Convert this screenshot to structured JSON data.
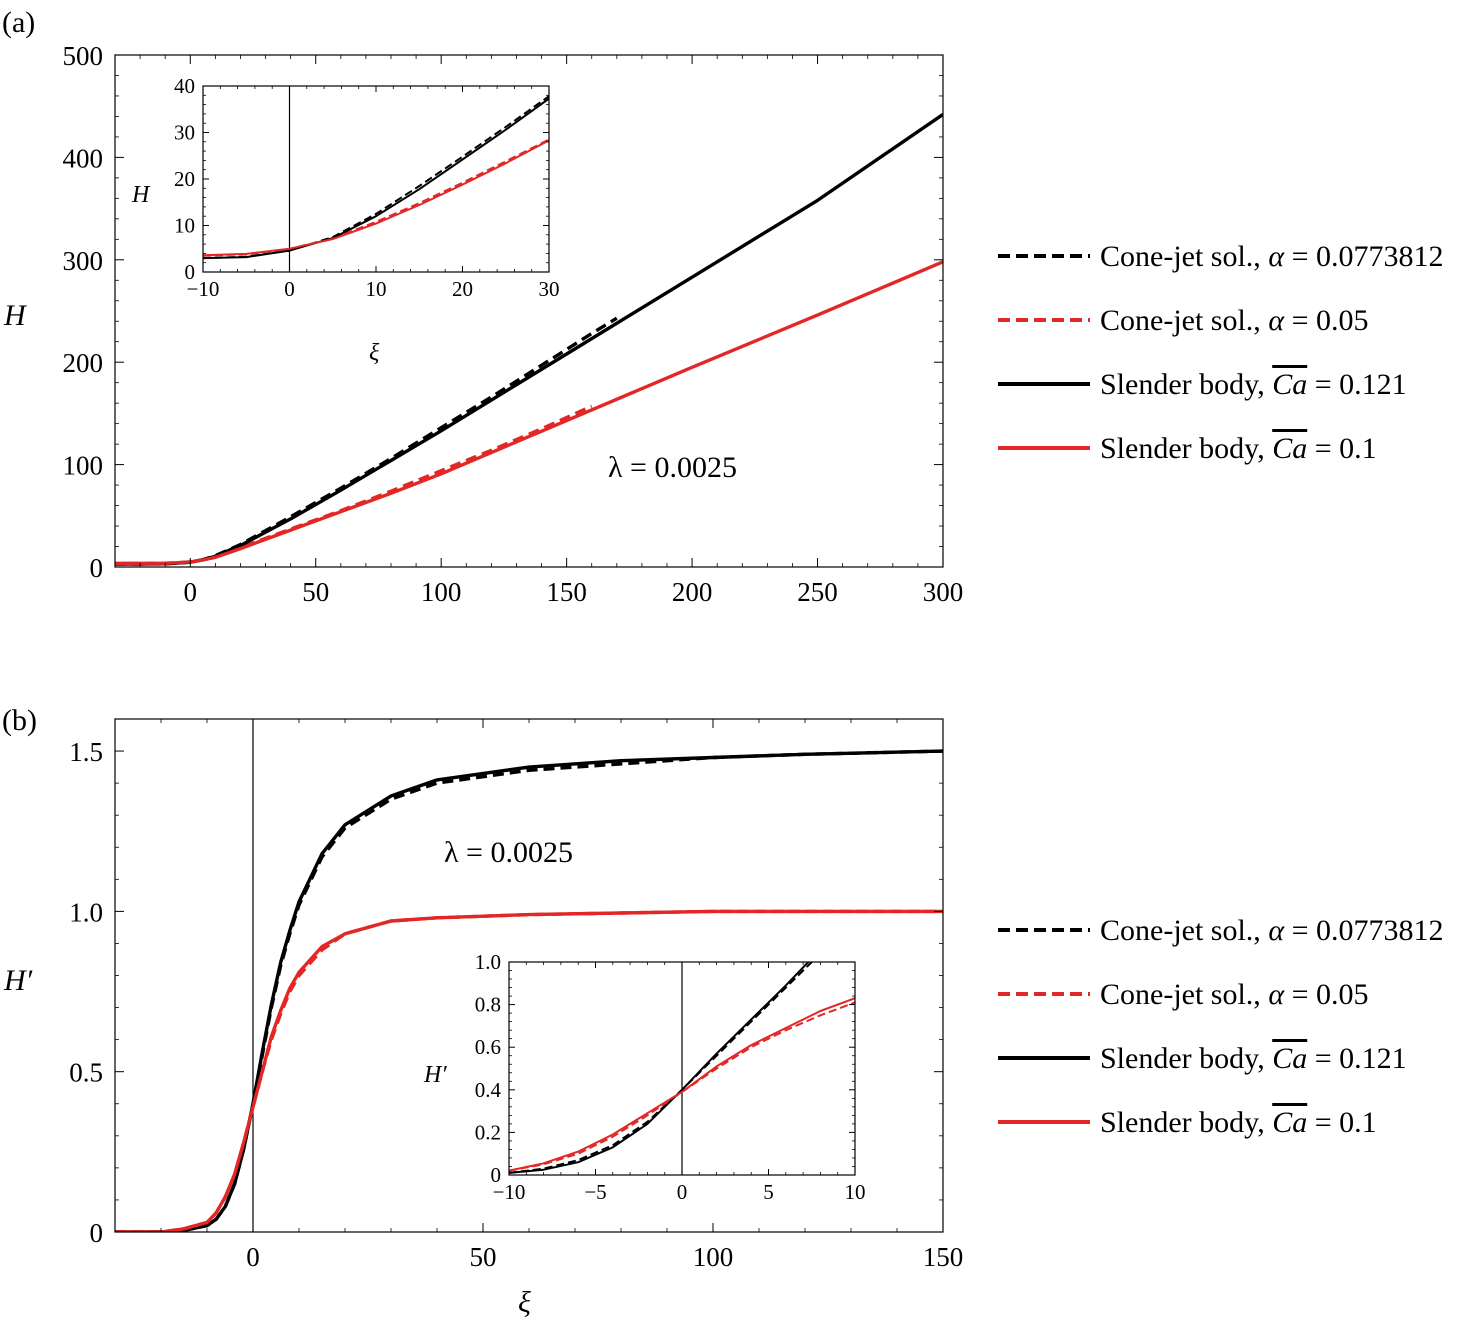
{
  "colors": {
    "black": "#000000",
    "red": "#e32726"
  },
  "chart_data": [
    {
      "id": "a",
      "type": "line",
      "panel_label": "(a)",
      "xlabel": "",
      "ylabel": "H",
      "xlim": [
        -30,
        300
      ],
      "ylim": [
        0,
        500
      ],
      "xticks": [
        0,
        50,
        100,
        150,
        200,
        250,
        300
      ],
      "yticks": [
        0,
        100,
        200,
        300,
        400,
        500
      ],
      "annotation": "λ = 0.0025",
      "legend_position": "right",
      "legend": [
        {
          "prefix": "Cone-jet sol., ",
          "symbol": "α",
          "suffix": " = 0.0773812",
          "color": "#000000",
          "style": "dashed"
        },
        {
          "prefix": "Cone-jet sol., ",
          "symbol": "α",
          "suffix": " = 0.05",
          "color": "#e32726",
          "style": "dashed"
        },
        {
          "prefix": "Slender body, ",
          "symbol": "Ca",
          "suffix": " = 0.121",
          "color": "#000000",
          "style": "solid"
        },
        {
          "prefix": "Slender body, ",
          "symbol": "Ca",
          "suffix": " = 0.1",
          "color": "#e32726",
          "style": "solid"
        }
      ],
      "series": [
        {
          "name": "Cone-jet sol., α = 0.0773812",
          "color": "#000000",
          "style": "dashed",
          "x": [
            -30,
            -20,
            -10,
            -5,
            0,
            5,
            10,
            20,
            40,
            60,
            80,
            100,
            120,
            140,
            160,
            170
          ],
          "y": [
            3,
            3,
            3.2,
            3.8,
            4.7,
            7,
            11,
            22,
            49,
            77,
            106,
            136,
            166,
            197,
            228,
            243
          ]
        },
        {
          "name": "Cone-jet sol., α = 0.05",
          "color": "#e32726",
          "style": "dashed",
          "x": [
            -25,
            -20,
            -10,
            -5,
            0,
            5,
            10,
            20,
            40,
            60,
            80,
            100,
            120,
            140,
            160
          ],
          "y": [
            3.5,
            3.5,
            3.6,
            4.1,
            5,
            7,
            10,
            19,
            37,
            55,
            74,
            94,
            114,
            135,
            157
          ]
        },
        {
          "name": "Slender body, Ca = 0.121",
          "color": "#000000",
          "style": "solid",
          "x": [
            -30,
            -20,
            -10,
            -5,
            0,
            5,
            10,
            20,
            40,
            60,
            80,
            100,
            150,
            200,
            250,
            300
          ],
          "y": [
            3,
            3,
            3.2,
            3.8,
            4.7,
            7,
            10.5,
            21,
            47,
            75,
            104,
            133,
            208,
            283,
            358,
            442
          ]
        },
        {
          "name": "Slender body, Ca = 0.1",
          "color": "#e32726",
          "style": "solid",
          "x": [
            -30,
            -20,
            -10,
            -5,
            0,
            5,
            10,
            20,
            40,
            60,
            80,
            100,
            150,
            200,
            250,
            300
          ],
          "y": [
            3.6,
            3.6,
            3.7,
            4.2,
            5,
            6.8,
            9.5,
            18,
            36,
            54,
            72,
            91,
            143,
            195,
            246,
            298
          ]
        }
      ],
      "inset": {
        "xlabel": "ξ",
        "ylabel": "H",
        "xlim": [
          -10,
          30
        ],
        "ylim": [
          0,
          40
        ],
        "xticks": [
          -10,
          0,
          10,
          20,
          30
        ],
        "yticks": [
          0,
          10,
          20,
          30,
          40
        ],
        "vline_x": 0,
        "series": [
          {
            "color": "#000000",
            "style": "dashed",
            "x": [
              -10,
              -5,
              0,
              5,
              10,
              15,
              20,
              25,
              30
            ],
            "y": [
              3,
              3.3,
              4.6,
              7.5,
              12.5,
              18.5,
              24.8,
              31.2,
              37.8
            ]
          },
          {
            "color": "#e32726",
            "style": "dashed",
            "x": [
              -10,
              -5,
              0,
              5,
              10,
              15,
              20,
              25,
              30
            ],
            "y": [
              3.5,
              3.8,
              5,
              7.2,
              10.8,
              14.8,
              19.2,
              23.8,
              28.5
            ]
          },
          {
            "color": "#000000",
            "style": "solid",
            "x": [
              -10,
              -5,
              0,
              5,
              10,
              15,
              20,
              25,
              30
            ],
            "y": [
              3,
              3.2,
              4.6,
              7.3,
              12,
              17.8,
              24.2,
              30.6,
              37.3
            ]
          },
          {
            "color": "#e32726",
            "style": "solid",
            "x": [
              -10,
              -5,
              0,
              5,
              10,
              15,
              20,
              25,
              30
            ],
            "y": [
              3.6,
              3.9,
              5,
              7.1,
              10.4,
              14.4,
              18.8,
              23.4,
              28.3
            ]
          }
        ]
      }
    },
    {
      "id": "b",
      "type": "line",
      "panel_label": "(b)",
      "xlabel": "ξ",
      "ylabel": "H′",
      "xlim": [
        -30,
        150
      ],
      "ylim": [
        0,
        1.6
      ],
      "xticks": [
        0,
        50,
        100,
        150
      ],
      "yticks": [
        0,
        0.5,
        1.0,
        1.5
      ],
      "ytick_labels": [
        "0",
        "0.5",
        "1.0",
        "1.5"
      ],
      "vline_x": 0,
      "annotation": "λ = 0.0025",
      "legend_position": "right",
      "legend": [
        {
          "prefix": "Cone-jet sol., ",
          "symbol": "α",
          "suffix": " = 0.0773812",
          "color": "#000000",
          "style": "dashed"
        },
        {
          "prefix": "Cone-jet sol., ",
          "symbol": "α",
          "suffix": " = 0.05",
          "color": "#e32726",
          "style": "dashed"
        },
        {
          "prefix": "Slender body, ",
          "symbol": "Ca",
          "suffix": " = 0.121",
          "color": "#000000",
          "style": "solid"
        },
        {
          "prefix": "Slender body, ",
          "symbol": "Ca",
          "suffix": " = 0.1",
          "color": "#e32726",
          "style": "solid"
        }
      ],
      "series": [
        {
          "name": "Cone-jet sol., α = 0.0773812",
          "color": "#000000",
          "style": "dashed",
          "x": [
            -30,
            -20,
            -15,
            -10,
            -8,
            -6,
            -4,
            -2,
            0,
            2,
            4,
            6,
            8,
            10,
            15,
            20,
            30,
            40,
            60,
            80,
            100,
            120,
            150
          ],
          "y": [
            0,
            0,
            0.005,
            0.02,
            0.04,
            0.08,
            0.15,
            0.26,
            0.4,
            0.55,
            0.7,
            0.83,
            0.93,
            1.02,
            1.17,
            1.26,
            1.35,
            1.4,
            1.44,
            1.46,
            1.48,
            1.49,
            1.5
          ]
        },
        {
          "name": "Cone-jet sol., α = 0.05",
          "color": "#e32726",
          "style": "dashed",
          "x": [
            -30,
            -20,
            -15,
            -10,
            -8,
            -6,
            -4,
            -2,
            0,
            2,
            4,
            6,
            8,
            10,
            15,
            20,
            30,
            40,
            60,
            80,
            100,
            120,
            150
          ],
          "y": [
            0,
            0,
            0.01,
            0.03,
            0.06,
            0.11,
            0.18,
            0.28,
            0.39,
            0.5,
            0.6,
            0.68,
            0.75,
            0.8,
            0.88,
            0.93,
            0.97,
            0.98,
            0.99,
            0.995,
            1.0,
            1.0,
            1.0
          ]
        },
        {
          "name": "Slender body, Ca = 0.121",
          "color": "#000000",
          "style": "solid",
          "x": [
            -30,
            -20,
            -15,
            -10,
            -8,
            -6,
            -4,
            -2,
            0,
            2,
            4,
            6,
            8,
            10,
            15,
            20,
            30,
            40,
            60,
            80,
            100,
            120,
            150
          ],
          "y": [
            0,
            0,
            0.005,
            0.02,
            0.04,
            0.08,
            0.15,
            0.26,
            0.4,
            0.56,
            0.71,
            0.84,
            0.94,
            1.03,
            1.18,
            1.27,
            1.36,
            1.41,
            1.45,
            1.47,
            1.48,
            1.49,
            1.5
          ]
        },
        {
          "name": "Slender body, Ca = 0.1",
          "color": "#e32726",
          "style": "solid",
          "x": [
            -30,
            -20,
            -15,
            -10,
            -8,
            -6,
            -4,
            -2,
            0,
            2,
            4,
            6,
            8,
            10,
            15,
            20,
            30,
            40,
            60,
            80,
            100,
            120,
            150
          ],
          "y": [
            0,
            0,
            0.01,
            0.03,
            0.06,
            0.11,
            0.18,
            0.28,
            0.39,
            0.5,
            0.61,
            0.69,
            0.76,
            0.81,
            0.89,
            0.93,
            0.97,
            0.98,
            0.99,
            0.995,
            1.0,
            1.0,
            1.0
          ]
        }
      ],
      "inset": {
        "xlabel": "",
        "ylabel": "H′",
        "xlim": [
          -10,
          10
        ],
        "ylim": [
          0,
          1.0
        ],
        "xticks": [
          -10,
          -5,
          0,
          5,
          10
        ],
        "yticks": [
          0,
          0.2,
          0.4,
          0.6,
          0.8,
          1.0
        ],
        "ytick_labels": [
          "0",
          "0.2",
          "0.4",
          "0.6",
          "0.8",
          "1.0"
        ],
        "vline_x": 0,
        "series": [
          {
            "color": "#000000",
            "style": "dashed",
            "x": [
              -10,
              -8,
              -6,
              -4,
              -2,
              0,
              2,
              4,
              6,
              7.5
            ],
            "y": [
              0.01,
              0.03,
              0.07,
              0.14,
              0.25,
              0.4,
              0.56,
              0.72,
              0.88,
              1.0
            ]
          },
          {
            "color": "#e32726",
            "style": "dashed",
            "x": [
              -10,
              -8,
              -6,
              -4,
              -2,
              0,
              2,
              4,
              6,
              8,
              10
            ],
            "y": [
              0.02,
              0.05,
              0.1,
              0.18,
              0.28,
              0.39,
              0.5,
              0.6,
              0.68,
              0.75,
              0.81
            ]
          },
          {
            "color": "#000000",
            "style": "solid",
            "x": [
              -10,
              -8,
              -6,
              -4,
              -2,
              0,
              2,
              4,
              6,
              7.3
            ],
            "y": [
              0.01,
              0.025,
              0.06,
              0.13,
              0.24,
              0.4,
              0.57,
              0.73,
              0.89,
              1.0
            ]
          },
          {
            "color": "#e32726",
            "style": "solid",
            "x": [
              -10,
              -8,
              -6,
              -4,
              -2,
              0,
              2,
              4,
              6,
              8,
              10
            ],
            "y": [
              0.02,
              0.055,
              0.11,
              0.19,
              0.29,
              0.39,
              0.51,
              0.61,
              0.69,
              0.77,
              0.83
            ]
          }
        ]
      }
    }
  ]
}
